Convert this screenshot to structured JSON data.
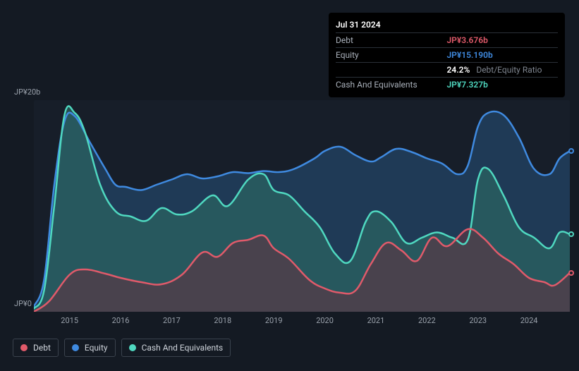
{
  "chart": {
    "type": "area",
    "background_color": "#141a23",
    "plot_background": "#171e29",
    "grid_color": "#2e3640",
    "ylabel_top": "JP¥20b",
    "ylabel_bottom": "JP¥0",
    "ylim": [
      0,
      20
    ],
    "ytick_positions": [
      0,
      20
    ],
    "label_fontsize": 11,
    "label_color": "#9aa1ab",
    "x_years": [
      "2015",
      "2016",
      "2017",
      "2018",
      "2019",
      "2020",
      "2021",
      "2022",
      "2023",
      "2024"
    ],
    "x_range": [
      2014.3,
      2024.8
    ],
    "line_width": 2.5,
    "fill_opacity": 0.35,
    "series": [
      {
        "name": "Equity",
        "color": "#3f8ae0",
        "fill": "#24496f",
        "points": [
          [
            2014.3,
            0.5
          ],
          [
            2014.5,
            3
          ],
          [
            2014.7,
            12
          ],
          [
            2014.9,
            18
          ],
          [
            2015.1,
            18.5
          ],
          [
            2015.4,
            16
          ],
          [
            2015.7,
            13.5
          ],
          [
            2015.9,
            12
          ],
          [
            2016.1,
            11.8
          ],
          [
            2016.4,
            11.5
          ],
          [
            2016.7,
            12
          ],
          [
            2017.0,
            12.5
          ],
          [
            2017.3,
            13
          ],
          [
            2017.6,
            12.6
          ],
          [
            2017.9,
            12.8
          ],
          [
            2018.2,
            13.2
          ],
          [
            2018.5,
            13.1
          ],
          [
            2018.8,
            13.3
          ],
          [
            2019.1,
            13.2
          ],
          [
            2019.4,
            13.5
          ],
          [
            2019.8,
            14.5
          ],
          [
            2020.0,
            15.2
          ],
          [
            2020.3,
            15.6
          ],
          [
            2020.6,
            14.8
          ],
          [
            2020.9,
            14.2
          ],
          [
            2021.1,
            14.6
          ],
          [
            2021.4,
            15.4
          ],
          [
            2021.7,
            15.1
          ],
          [
            2022.0,
            14.5
          ],
          [
            2022.3,
            14.0
          ],
          [
            2022.6,
            13.0
          ],
          [
            2022.8,
            13.8
          ],
          [
            2023.0,
            17.5
          ],
          [
            2023.2,
            18.8
          ],
          [
            2023.5,
            18.6
          ],
          [
            2023.8,
            16.5
          ],
          [
            2024.1,
            13.5
          ],
          [
            2024.4,
            13
          ],
          [
            2024.6,
            14.5
          ],
          [
            2024.8,
            15.19
          ]
        ]
      },
      {
        "name": "Cash And Equivalents",
        "color": "#4fd8c0",
        "fill": "#2d6963",
        "points": [
          [
            2014.3,
            0.3
          ],
          [
            2014.5,
            2
          ],
          [
            2014.7,
            10
          ],
          [
            2014.9,
            18.6
          ],
          [
            2015.1,
            18.8
          ],
          [
            2015.3,
            17
          ],
          [
            2015.6,
            12
          ],
          [
            2015.9,
            9.5
          ],
          [
            2016.2,
            9
          ],
          [
            2016.5,
            8.6
          ],
          [
            2016.8,
            9.8
          ],
          [
            2017.1,
            9.2
          ],
          [
            2017.4,
            9.5
          ],
          [
            2017.8,
            11
          ],
          [
            2018.1,
            10
          ],
          [
            2018.5,
            12.5
          ],
          [
            2018.8,
            13
          ],
          [
            2019.0,
            11.5
          ],
          [
            2019.3,
            11
          ],
          [
            2019.6,
            9.5
          ],
          [
            2019.9,
            8
          ],
          [
            2020.2,
            5.5
          ],
          [
            2020.5,
            4.8
          ],
          [
            2020.8,
            8.5
          ],
          [
            2021.0,
            9.5
          ],
          [
            2021.3,
            8.5
          ],
          [
            2021.6,
            6.5
          ],
          [
            2021.9,
            7
          ],
          [
            2022.2,
            7.5
          ],
          [
            2022.5,
            7
          ],
          [
            2022.8,
            6.8
          ],
          [
            2023.0,
            12.5
          ],
          [
            2023.2,
            13.5
          ],
          [
            2023.5,
            11
          ],
          [
            2023.8,
            8
          ],
          [
            2024.1,
            7
          ],
          [
            2024.4,
            6
          ],
          [
            2024.6,
            7.5
          ],
          [
            2024.8,
            7.33
          ]
        ]
      },
      {
        "name": "Debt",
        "color": "#e05a6a",
        "fill": "#5c3843",
        "points": [
          [
            2014.3,
            0
          ],
          [
            2014.6,
            1
          ],
          [
            2015.0,
            3.5
          ],
          [
            2015.3,
            4
          ],
          [
            2015.7,
            3.6
          ],
          [
            2016.0,
            3.2
          ],
          [
            2016.4,
            2.8
          ],
          [
            2016.8,
            2.6
          ],
          [
            2017.2,
            3.5
          ],
          [
            2017.6,
            5.6
          ],
          [
            2017.9,
            5.2
          ],
          [
            2018.2,
            6.5
          ],
          [
            2018.5,
            6.8
          ],
          [
            2018.8,
            7.2
          ],
          [
            2019.0,
            6
          ],
          [
            2019.3,
            5
          ],
          [
            2019.7,
            3
          ],
          [
            2020.0,
            2.2
          ],
          [
            2020.3,
            1.8
          ],
          [
            2020.6,
            2.0
          ],
          [
            2020.9,
            4.5
          ],
          [
            2021.2,
            6.5
          ],
          [
            2021.5,
            5.8
          ],
          [
            2021.8,
            4.8
          ],
          [
            2022.1,
            7.0
          ],
          [
            2022.4,
            6.2
          ],
          [
            2022.8,
            7.8
          ],
          [
            2023.1,
            7.0
          ],
          [
            2023.4,
            5.5
          ],
          [
            2023.7,
            4.5
          ],
          [
            2024.0,
            3.2
          ],
          [
            2024.3,
            2.8
          ],
          [
            2024.5,
            2.5
          ],
          [
            2024.8,
            3.68
          ]
        ]
      }
    ],
    "end_markers": [
      {
        "series": "Equity",
        "color": "#3f8ae0",
        "y": 15.19
      },
      {
        "series": "Cash And Equivalents",
        "color": "#4fd8c0",
        "y": 7.33
      },
      {
        "series": "Debt",
        "color": "#e05a6a",
        "y": 3.68
      }
    ]
  },
  "tooltip": {
    "date": "Jul 31 2024",
    "rows": [
      {
        "label": "Debt",
        "value": "JP¥3.676b",
        "color": "#e05a6a"
      },
      {
        "label": "Equity",
        "value": "JP¥15.190b",
        "color": "#3f8ae0"
      },
      {
        "label": "",
        "value": "24.2%",
        "extra": "Debt/Equity Ratio",
        "color": "#ffffff"
      },
      {
        "label": "Cash And Equivalents",
        "value": "JP¥7.327b",
        "color": "#4fd8c0"
      }
    ]
  },
  "legend": {
    "items": [
      {
        "label": "Debt",
        "color": "#e05a6a"
      },
      {
        "label": "Equity",
        "color": "#3f8ae0"
      },
      {
        "label": "Cash And Equivalents",
        "color": "#4fd8c0"
      }
    ]
  }
}
